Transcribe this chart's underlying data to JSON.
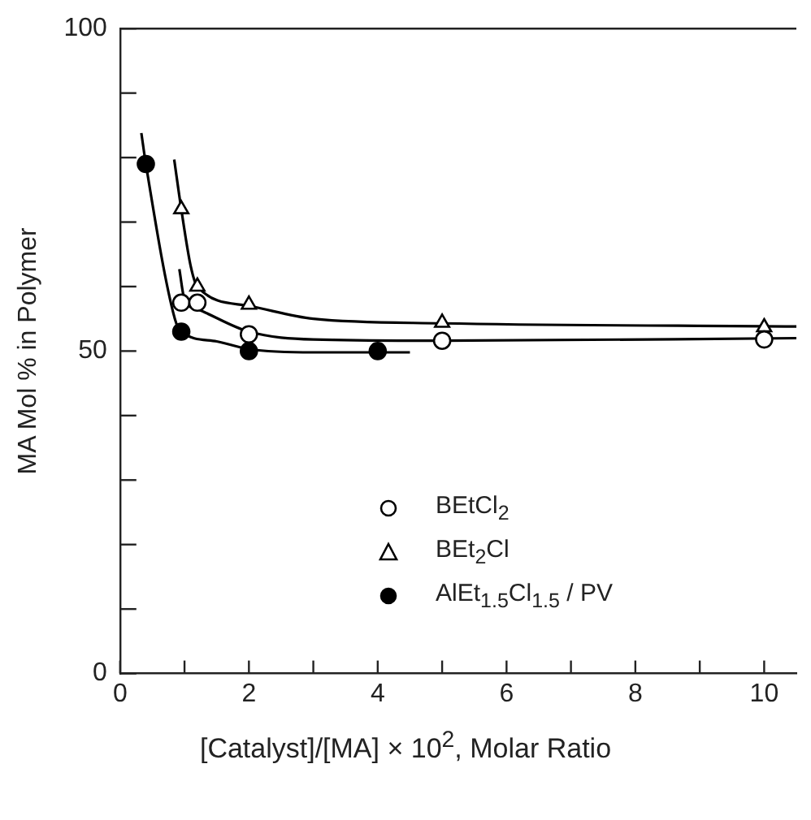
{
  "chart_data": {
    "type": "scatter",
    "xlabel": "[Catalyst]/[MA] × 10$^{2}$, Molar Ratio",
    "ylabel": "MA Mol % in Polymer",
    "xlim": [
      0,
      10.5
    ],
    "xticks": [
      0,
      {
        "value": 1,
        "label": null
      },
      2,
      {
        "value": 3,
        "label": null
      },
      4,
      {
        "value": 5,
        "label": null
      },
      6,
      {
        "value": 7,
        "label": null
      },
      8,
      {
        "value": 9,
        "label": null
      },
      10
    ],
    "ylim": [
      0,
      100
    ],
    "yticks": [
      0,
      {
        "value": 10,
        "label": null
      },
      {
        "value": 20,
        "label": null
      },
      {
        "value": 30,
        "label": null
      },
      {
        "value": 40,
        "label": null
      },
      50,
      {
        "value": 60,
        "label": null
      },
      {
        "value": 70,
        "label": null
      },
      {
        "value": 80,
        "label": null
      },
      {
        "value": 90,
        "label": null
      },
      100
    ],
    "grid": false,
    "legend": "bottom",
    "series": [
      {
        "name": "BEtCl$_{2}$",
        "marker": "circle",
        "color": "#ffffff",
        "x": [
          0.95,
          1.2,
          2,
          5,
          10
        ],
        "values": [
          57.5,
          57.5,
          52.6,
          51.6,
          51.8
        ]
      },
      {
        "name": "BEt$_{2}$Cl",
        "marker": "triangle",
        "color": "#ffffff",
        "x": [
          0.95,
          1.2,
          2,
          5,
          10
        ],
        "values": [
          72,
          60,
          57.2,
          54.4,
          53.7
        ]
      },
      {
        "name": "AlEt$_{1.5}$Cl$_{1.5}$ / PV",
        "marker": "circle",
        "color": "#000000",
        "x": [
          0.4,
          0.95,
          2,
          4
        ],
        "values": [
          79,
          53,
          50,
          50
        ]
      },
      {
        "type": "line",
        "marker": "none",
        "color": "#000000",
        "x": [
          0.92,
          1.0,
          1.2,
          2,
          3,
          5,
          10.5
        ],
        "values": [
          62.7,
          58,
          56.5,
          53,
          51.8,
          51.6,
          52
        ]
      },
      {
        "type": "line",
        "marker": "none",
        "color": "#000000",
        "x": [
          0.84,
          0.95,
          1.1,
          1.2,
          2,
          3,
          5,
          10.5
        ],
        "values": [
          79.7,
          72,
          63,
          60,
          57,
          55,
          54.3,
          53.8
        ]
      },
      {
        "type": "line",
        "marker": "none",
        "color": "#000000",
        "x": [
          0.33,
          0.4,
          0.85,
          0.95,
          1.5,
          2,
          3,
          4.5
        ],
        "values": [
          83.8,
          79,
          55,
          53,
          51.5,
          50.3,
          49.8,
          49.8
        ]
      }
    ]
  }
}
